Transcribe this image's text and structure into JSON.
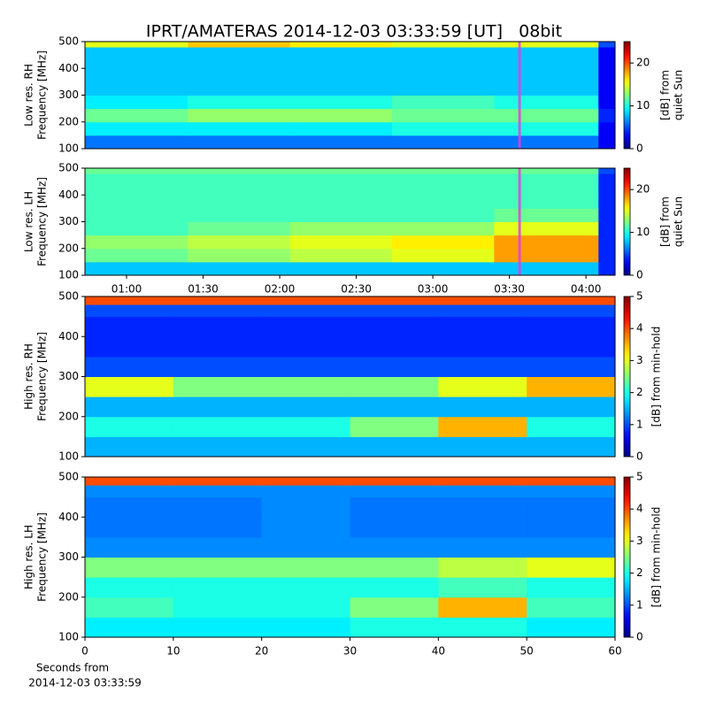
{
  "title": "IPRT/AMATERAS 2014-12-03 03:33:59 [UT]   08bit",
  "chart_data": [
    {
      "type": "heatmap",
      "ylabel": [
        "Low res. RH",
        "Frequency [MHz]"
      ],
      "clabel": [
        "[dB] from",
        "quiet Sun"
      ],
      "xlim": [
        43.7,
        251.4
      ],
      "ylim": [
        100,
        500
      ],
      "yticks": [
        100,
        200,
        300,
        400,
        500
      ],
      "clim": [
        0,
        25
      ],
      "cticks": [
        0,
        10,
        20
      ],
      "markers_x": [
        213.98
      ],
      "marker_color": "#e040e0",
      "x_edges": [
        43.7,
        84,
        124,
        164,
        204,
        244.9,
        251.4
      ],
      "freq_edges": [
        100,
        150,
        200,
        250,
        300,
        350,
        400,
        450,
        480,
        500
      ],
      "z": [
        [
          6,
          6,
          6,
          6,
          6,
          3
        ],
        [
          9,
          9,
          9,
          10,
          10,
          3
        ],
        [
          12,
          13,
          13,
          12,
          12,
          4
        ],
        [
          9,
          10,
          10,
          11,
          10,
          3
        ],
        [
          8,
          8,
          8,
          8,
          8,
          3
        ],
        [
          8,
          8,
          8,
          8,
          8,
          3
        ],
        [
          8,
          8,
          8,
          8,
          8,
          3
        ],
        [
          8,
          8,
          8,
          8,
          8,
          3
        ],
        [
          15,
          17,
          16,
          15,
          15,
          5
        ]
      ]
    },
    {
      "type": "heatmap",
      "ylabel": [
        "Low res. LH",
        "Frequency [MHz]"
      ],
      "clabel": [
        "[dB] from",
        "quiet Sun"
      ],
      "xlim": [
        43.7,
        251.4
      ],
      "ylim": [
        100,
        500
      ],
      "yticks": [
        100,
        200,
        300,
        400,
        500
      ],
      "xticks": [
        {
          "value": 60,
          "label": "01:00"
        },
        {
          "value": 90,
          "label": "01:30"
        },
        {
          "value": 120,
          "label": "02:00"
        },
        {
          "value": 150,
          "label": "02:30"
        },
        {
          "value": 180,
          "label": "03:00"
        },
        {
          "value": 210,
          "label": "03:30"
        },
        {
          "value": 240,
          "label": "04:00"
        }
      ],
      "clim": [
        0,
        25
      ],
      "cticks": [
        0,
        10,
        20
      ],
      "markers_x": [
        213.98
      ],
      "marker_color": "#e040e0",
      "x_edges": [
        43.7,
        84,
        124,
        164,
        204,
        244.9,
        251.4
      ],
      "freq_edges": [
        100,
        150,
        200,
        250,
        300,
        350,
        400,
        450,
        480,
        500
      ],
      "z": [
        [
          8,
          8,
          8,
          8,
          8,
          4
        ],
        [
          12,
          13,
          14,
          15,
          18,
          4
        ],
        [
          13,
          14,
          15,
          16,
          18,
          4
        ],
        [
          11,
          12,
          13,
          13,
          15,
          4
        ],
        [
          11,
          11,
          11,
          11,
          12,
          4
        ],
        [
          11,
          11,
          11,
          11,
          11,
          4
        ],
        [
          11,
          11,
          11,
          11,
          11,
          4
        ],
        [
          11,
          11,
          11,
          11,
          11,
          4
        ],
        [
          12,
          12,
          12,
          12,
          12,
          5
        ]
      ]
    },
    {
      "type": "heatmap",
      "ylabel": [
        "High res. RH",
        "Frequency [MHz]"
      ],
      "clabel": [
        "[dB] from min-hold"
      ],
      "xlim": [
        0,
        60
      ],
      "ylim": [
        100,
        500
      ],
      "yticks": [
        100,
        200,
        300,
        400,
        500
      ],
      "clim": [
        0,
        5
      ],
      "cticks": [
        0,
        1,
        2,
        3,
        4,
        5
      ],
      "x_edges": [
        0,
        10,
        20,
        30,
        40,
        50,
        60
      ],
      "freq_edges": [
        100,
        150,
        200,
        250,
        300,
        350,
        400,
        450,
        480,
        500
      ],
      "z": [
        [
          1.5,
          1.5,
          1.5,
          1.5,
          1.5,
          1.5
        ],
        [
          2,
          2,
          2,
          2.5,
          3.5,
          2
        ],
        [
          1.5,
          1.5,
          1.5,
          1.5,
          1.5,
          1.5
        ],
        [
          3,
          2.5,
          2.5,
          2.5,
          3,
          3.5
        ],
        [
          1,
          1,
          1,
          1,
          1,
          1
        ],
        [
          0.8,
          0.8,
          0.8,
          0.8,
          0.8,
          0.8
        ],
        [
          0.8,
          0.8,
          0.8,
          0.8,
          0.8,
          0.8
        ],
        [
          1,
          1,
          1,
          1,
          1,
          1
        ],
        [
          4,
          4,
          4,
          4,
          4,
          4
        ]
      ]
    },
    {
      "type": "heatmap",
      "ylabel": [
        "High res. LH",
        "Frequency [MHz]"
      ],
      "clabel": [
        "[dB] from min-hold"
      ],
      "xlim": [
        0,
        60
      ],
      "ylim": [
        100,
        500
      ],
      "yticks": [
        100,
        200,
        300,
        400,
        500
      ],
      "xticks": [
        0,
        10,
        20,
        30,
        40,
        50,
        60
      ],
      "xlabel": [
        "Seconds from",
        "2014-12-03 03:33:59"
      ],
      "clim": [
        0,
        5
      ],
      "cticks": [
        0,
        1,
        2,
        3,
        4,
        5
      ],
      "x_edges": [
        0,
        10,
        20,
        30,
        40,
        50,
        60
      ],
      "freq_edges": [
        100,
        150,
        200,
        250,
        300,
        350,
        400,
        450,
        480,
        500
      ],
      "z": [
        [
          1.8,
          1.8,
          1.8,
          2,
          2,
          1.8
        ],
        [
          2.2,
          2,
          2,
          2.5,
          3.5,
          2.2
        ],
        [
          2,
          2,
          2,
          2,
          2.2,
          2
        ],
        [
          2.5,
          2.5,
          2.5,
          2.5,
          2.8,
          3
        ],
        [
          1.3,
          1.3,
          1.3,
          1.3,
          1.3,
          1.3
        ],
        [
          1.2,
          1.2,
          1.3,
          1.2,
          1.2,
          1.2
        ],
        [
          1.2,
          1.2,
          1.3,
          1.2,
          1.2,
          1.2
        ],
        [
          1.3,
          1.3,
          1.3,
          1.3,
          1.3,
          1.3
        ],
        [
          4,
          4,
          4,
          4,
          4,
          4
        ]
      ]
    }
  ]
}
